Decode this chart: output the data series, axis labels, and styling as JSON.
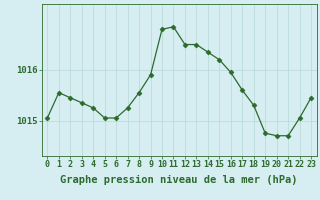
{
  "hours": [
    0,
    1,
    2,
    3,
    4,
    5,
    6,
    7,
    8,
    9,
    10,
    11,
    12,
    13,
    14,
    15,
    16,
    17,
    18,
    19,
    20,
    21,
    22,
    23
  ],
  "pressure": [
    1015.05,
    1015.55,
    1015.45,
    1015.35,
    1015.25,
    1015.05,
    1015.05,
    1015.25,
    1015.55,
    1015.9,
    1016.8,
    1016.85,
    1016.5,
    1016.5,
    1016.35,
    1016.2,
    1015.95,
    1015.6,
    1015.3,
    1014.75,
    1014.7,
    1014.7,
    1015.05,
    1015.45
  ],
  "line_color": "#2d6a2d",
  "marker_color": "#2d6a2d",
  "bg_color": "#d6eef2",
  "grid_color": "#b8d8d8",
  "axis_color": "#2d6a2d",
  "tick_label_color": "#2d6a2d",
  "xlabel": "Graphe pression niveau de la mer (hPa)",
  "ytick_labels": [
    "1015",
    "1016"
  ],
  "ytick_values": [
    1015.0,
    1016.0
  ],
  "ylim": [
    1014.3,
    1017.3
  ],
  "xlim": [
    -0.5,
    23.5
  ],
  "label_fontsize": 7.5,
  "tick_fontsize": 6.5
}
